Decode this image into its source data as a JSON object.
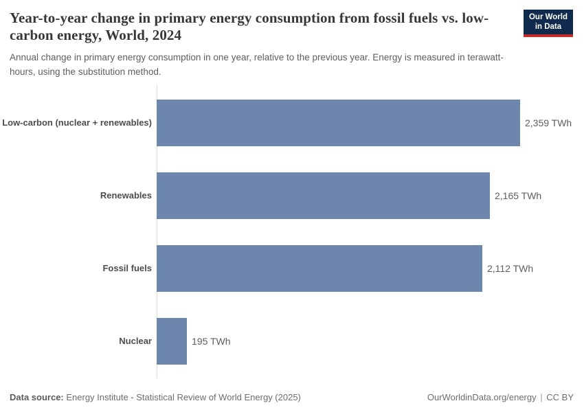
{
  "header": {
    "title": "Year-to-year change in primary energy consumption from fossil fuels vs. low-carbon energy, World, 2024",
    "subtitle": "Annual change in primary energy consumption in one year, relative to the previous year. Energy is measured in terawatt-hours, using the substitution method.",
    "logo_line1": "Our World",
    "logo_line2": "in Data"
  },
  "chart_data": {
    "type": "bar",
    "orientation": "horizontal",
    "title": "Year-to-year change in primary energy consumption from fossil fuels vs. low-carbon energy, World, 2024",
    "categories": [
      "Low-carbon (nuclear + renewables)",
      "Renewables",
      "Fossil fuels",
      "Nuclear"
    ],
    "values": [
      2359,
      2165,
      2112,
      195
    ],
    "value_labels": [
      "2,359 TWh",
      "2,165 TWh",
      "2,112 TWh",
      "195 TWh"
    ],
    "unit": "TWh",
    "xlim": [
      0,
      2359
    ],
    "grid": false,
    "legend": false,
    "bar_color": "#6d86ad",
    "axis_color": "#dedede"
  },
  "footer": {
    "datasource_label": "Data source:",
    "datasource_text": " Energy Institute - Statistical Review of World Energy (2025)",
    "link_text": "OurWorldinData.org/energy",
    "separator": "|",
    "license_text": "CC BY"
  }
}
